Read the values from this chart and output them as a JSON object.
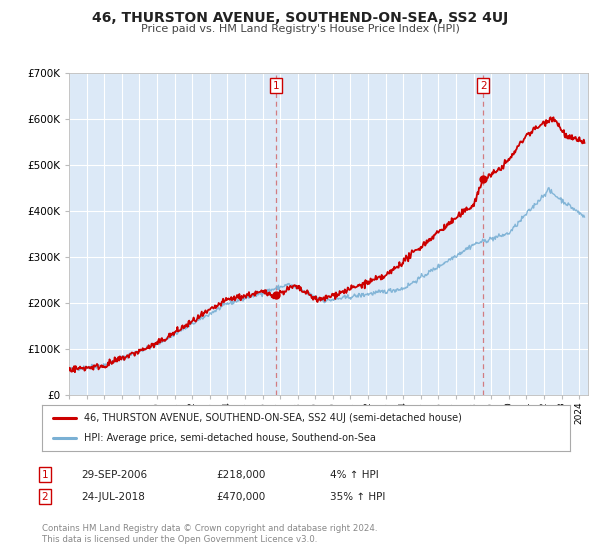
{
  "title": "46, THURSTON AVENUE, SOUTHEND-ON-SEA, SS2 4UJ",
  "subtitle": "Price paid vs. HM Land Registry's House Price Index (HPI)",
  "ylim": [
    0,
    700000
  ],
  "yticks": [
    0,
    100000,
    200000,
    300000,
    400000,
    500000,
    600000,
    700000
  ],
  "ytick_labels": [
    "£0",
    "£100K",
    "£200K",
    "£300K",
    "£400K",
    "£500K",
    "£600K",
    "£700K"
  ],
  "xlim_start": 1995.0,
  "xlim_end": 2024.5,
  "background_color": "#ffffff",
  "plot_bg_color": "#dce9f7",
  "grid_color": "#ffffff",
  "hpi_line_color": "#7ab0d4",
  "price_line_color": "#cc0000",
  "sale1_x": 2006.75,
  "sale1_y": 218000,
  "sale2_x": 2018.55,
  "sale2_y": 470000,
  "sale1_date": "29-SEP-2006",
  "sale1_price": "£218,000",
  "sale1_hpi": "4% ↑ HPI",
  "sale2_date": "24-JUL-2018",
  "sale2_price": "£470,000",
  "sale2_hpi": "35% ↑ HPI",
  "legend_entry1": "46, THURSTON AVENUE, SOUTHEND-ON-SEA, SS2 4UJ (semi-detached house)",
  "legend_entry2": "HPI: Average price, semi-detached house, Southend-on-Sea",
  "footer": "Contains HM Land Registry data © Crown copyright and database right 2024.\nThis data is licensed under the Open Government Licence v3.0."
}
